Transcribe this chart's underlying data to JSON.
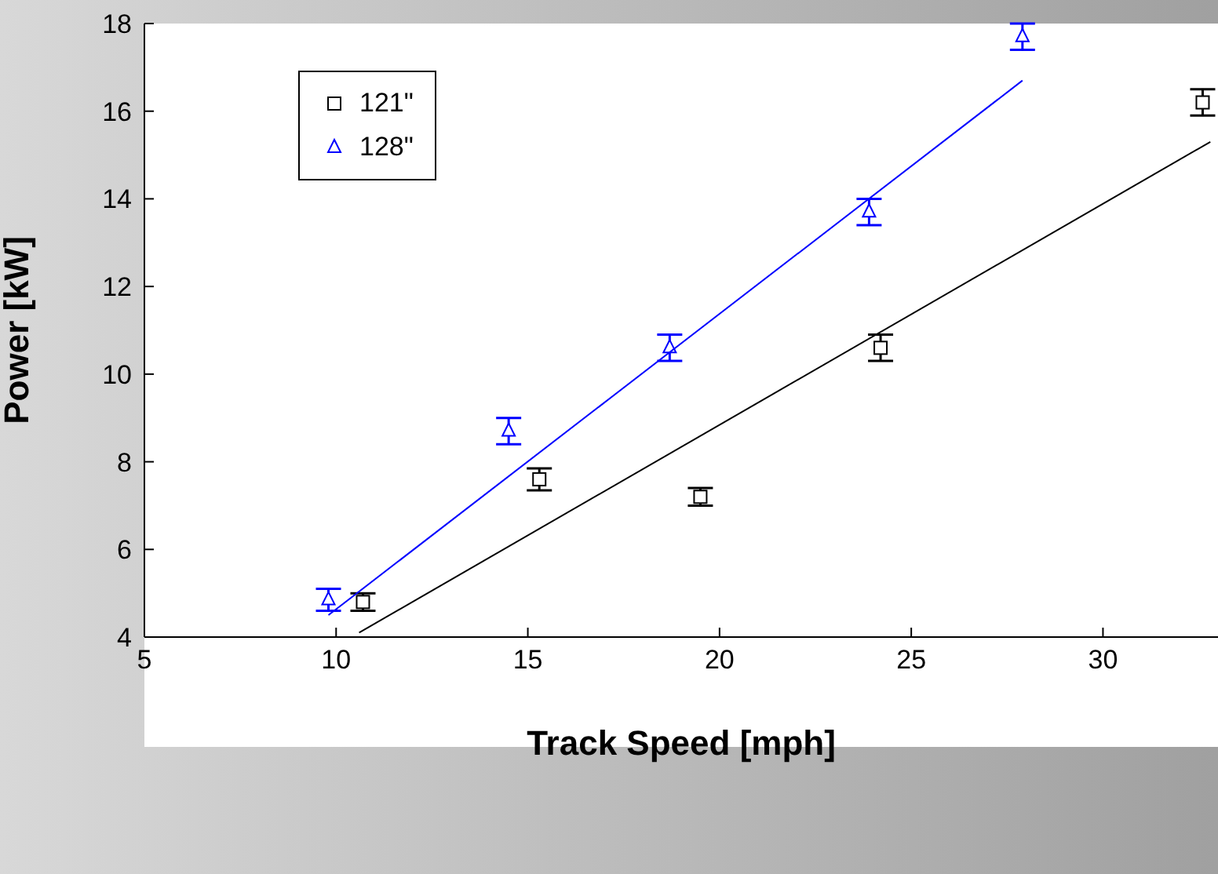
{
  "chart_data": {
    "type": "scatter",
    "xlabel": "Track Speed  [mph]",
    "ylabel": "Power  [kW]",
    "xlim": [
      5,
      33
    ],
    "xticks": [
      5,
      10,
      15,
      20,
      25,
      30
    ],
    "ylim": [
      4,
      18
    ],
    "yticks": [
      4,
      6,
      8,
      10,
      12,
      14,
      16,
      18
    ],
    "grid": false,
    "legend": "top left",
    "series": [
      {
        "name": "121\"",
        "color": "#000000",
        "marker": "square",
        "x": [
          10.7,
          15.3,
          19.5,
          24.2,
          32.6
        ],
        "values": [
          4.8,
          7.6,
          7.2,
          10.6,
          16.2
        ],
        "errors": [
          0.2,
          0.25,
          0.2,
          0.3,
          0.3
        ]
      },
      {
        "name": "128\"",
        "color": "#0000ff",
        "marker": "triangle",
        "x": [
          9.8,
          14.5,
          18.7,
          23.9,
          27.9
        ],
        "values": [
          4.85,
          8.7,
          10.6,
          13.7,
          17.7
        ],
        "errors": [
          0.25,
          0.3,
          0.3,
          0.3,
          0.3
        ]
      },
      {
        "type": "line",
        "color": "#000000",
        "marker": "none",
        "x": [
          10.6,
          32.8
        ],
        "values": [
          4.1,
          15.3
        ]
      },
      {
        "type": "line",
        "color": "#0000ff",
        "marker": "none",
        "x": [
          9.8,
          27.9
        ],
        "values": [
          4.5,
          16.7
        ]
      }
    ]
  }
}
